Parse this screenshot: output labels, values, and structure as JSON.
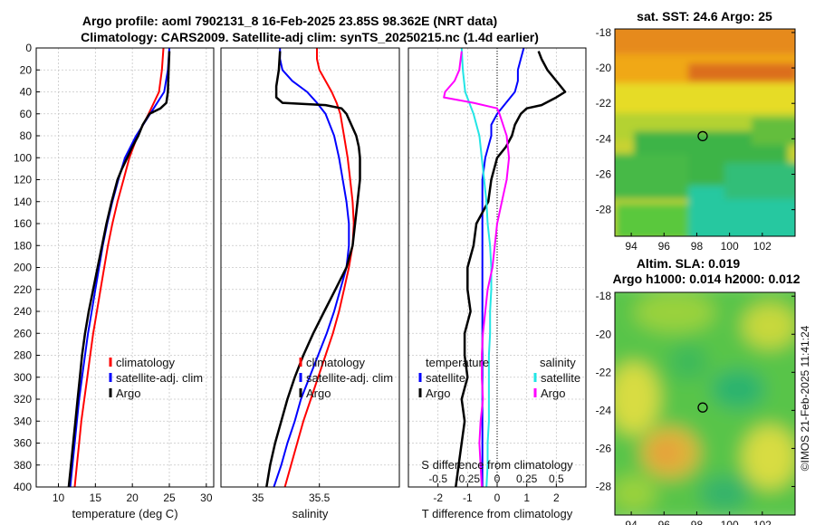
{
  "header": {
    "title_line1": "Argo profile: aoml 7902131_8 16-Feb-2025 23.85S 98.362E (NRT data)",
    "title_line2": "Climatology: CARS2009. Satellite-adj clim: synTS_20250215.nc (1.4d earlier)"
  },
  "side_text": "©IMOS 21-Feb-2025 11:41:24",
  "colors": {
    "climatology": "#ff0000",
    "satellite": "#0000ff",
    "argo": "#000000",
    "salinity_satellite": "#22e5e5",
    "salinity_argo": "#ff00ff"
  },
  "chart_data": [
    {
      "type": "line",
      "id": "temperature",
      "xlabel": "temperature (deg C)",
      "ylabel": "",
      "xlim": [
        7,
        31
      ],
      "ylim": [
        400,
        0
      ],
      "xticks": [
        10,
        15,
        20,
        25,
        30
      ],
      "yticks": [
        0,
        20,
        40,
        60,
        80,
        100,
        120,
        140,
        160,
        180,
        200,
        220,
        240,
        260,
        280,
        300,
        320,
        340,
        360,
        380,
        400
      ],
      "grid": true,
      "legend": {
        "position": "bottom-right",
        "entries": [
          "climatology",
          "satellite-adj. clim",
          "Argo"
        ]
      },
      "series": [
        {
          "name": "climatology",
          "depth": [
            0,
            20,
            40,
            60,
            80,
            100,
            120,
            140,
            160,
            180,
            200,
            220,
            240,
            260,
            280,
            300,
            320,
            340,
            360,
            380,
            400
          ],
          "values": [
            24.2,
            24.0,
            23.6,
            22.2,
            20.7,
            19.6,
            18.8,
            18.0,
            17.3,
            16.7,
            16.2,
            15.7,
            15.2,
            14.7,
            14.3,
            13.9,
            13.5,
            13.1,
            12.8,
            12.5,
            12.2
          ]
        },
        {
          "name": "satellite-adj. clim",
          "depth": [
            0,
            20,
            40,
            60,
            80,
            100,
            120,
            140,
            160,
            180,
            200,
            220,
            240,
            260,
            280,
            300,
            320,
            340,
            360,
            380,
            400
          ],
          "values": [
            25.0,
            24.8,
            24.3,
            22.4,
            20.5,
            19.0,
            18.1,
            17.3,
            16.6,
            16.0,
            15.5,
            15.0,
            14.5,
            14.0,
            13.6,
            13.2,
            12.8,
            12.5,
            12.2,
            11.9,
            11.6
          ]
        },
        {
          "name": "Argo",
          "depth": [
            3,
            20,
            40,
            50,
            55,
            60,
            70,
            80,
            90,
            100,
            110,
            120,
            140,
            160,
            180,
            200,
            220,
            240,
            260,
            280,
            300,
            320,
            340,
            360,
            380,
            400
          ],
          "values": [
            25.0,
            24.9,
            24.8,
            24.6,
            23.8,
            22.3,
            21.4,
            20.8,
            20.0,
            19.3,
            18.6,
            18.0,
            17.2,
            16.5,
            15.9,
            15.3,
            14.7,
            14.1,
            13.6,
            13.2,
            12.9,
            12.6,
            12.3,
            12.0,
            11.7,
            11.4
          ]
        }
      ]
    },
    {
      "type": "line",
      "id": "salinity",
      "xlabel": "salinity",
      "ylabel": "",
      "xlim": [
        34.7,
        36.15
      ],
      "ylim": [
        400,
        0
      ],
      "xticks": [
        35,
        35.5
      ],
      "grid": true,
      "legend": {
        "position": "bottom-right",
        "entries": [
          "climatology",
          "satellite-adj. clim",
          "Argo"
        ]
      },
      "series": [
        {
          "name": "climatology",
          "depth": [
            0,
            10,
            20,
            30,
            40,
            50,
            60,
            80,
            100,
            120,
            140,
            160,
            180,
            200,
            220,
            240,
            260,
            280,
            300,
            320,
            340,
            360,
            380,
            400
          ],
          "values": [
            35.48,
            35.48,
            35.5,
            35.55,
            35.6,
            35.64,
            35.67,
            35.7,
            35.73,
            35.75,
            35.77,
            35.78,
            35.77,
            35.74,
            35.7,
            35.66,
            35.61,
            35.55,
            35.49,
            35.43,
            35.37,
            35.32,
            35.27,
            35.22
          ]
        },
        {
          "name": "satellite-adj. clim",
          "depth": [
            0,
            10,
            20,
            30,
            40,
            50,
            60,
            80,
            100,
            120,
            140,
            160,
            180,
            200,
            220,
            240,
            260,
            280,
            300,
            320,
            340,
            360,
            380,
            400
          ],
          "values": [
            35.18,
            35.18,
            35.2,
            35.28,
            35.4,
            35.48,
            35.55,
            35.62,
            35.66,
            35.69,
            35.72,
            35.74,
            35.74,
            35.72,
            35.67,
            35.62,
            35.56,
            35.49,
            35.42,
            35.35,
            35.3,
            35.24,
            35.19,
            35.13
          ]
        },
        {
          "name": "Argo",
          "depth": [
            3,
            20,
            35,
            45,
            50,
            52,
            55,
            60,
            70,
            80,
            90,
            100,
            120,
            140,
            160,
            180,
            200,
            220,
            240,
            260,
            280,
            300,
            320,
            340,
            360,
            380,
            400
          ],
          "values": [
            35.18,
            35.17,
            35.15,
            35.15,
            35.2,
            35.55,
            35.68,
            35.72,
            35.76,
            35.8,
            35.82,
            35.83,
            35.83,
            35.81,
            35.79,
            35.77,
            35.72,
            35.63,
            35.54,
            35.45,
            35.37,
            35.3,
            35.24,
            35.19,
            35.14,
            35.1,
            35.07
          ]
        }
      ]
    },
    {
      "type": "line",
      "id": "difference",
      "xlabel": "T difference from climatology",
      "top_label": "S difference from climatology",
      "xlim": [
        -3,
        3
      ],
      "ylim": [
        400,
        0
      ],
      "xticks": [
        -2,
        -1,
        0,
        1,
        2
      ],
      "top_ticks": [
        "-0.5",
        "-0.25",
        "0",
        "0.25",
        "0.5"
      ],
      "grid": true,
      "legend": {
        "temperature_title": "temperature",
        "salinity_title": "salinity",
        "entries": [
          "satellite",
          "Argo",
          "satellite",
          "Argo"
        ]
      },
      "series": [
        {
          "name": "T satellite",
          "depth": [
            0,
            10,
            20,
            30,
            40,
            50,
            60,
            70,
            80,
            100,
            120,
            140,
            160,
            180,
            200,
            220,
            240,
            260,
            280,
            300,
            320,
            340,
            360,
            380,
            400
          ],
          "values": [
            0.9,
            0.8,
            0.7,
            0.7,
            0.6,
            0.3,
            0.0,
            -0.2,
            -0.2,
            -0.4,
            -0.5,
            -0.5,
            -0.5,
            -0.5,
            -0.5,
            -0.5,
            -0.5,
            -0.5,
            -0.5,
            -0.5,
            -0.5,
            -0.5,
            -0.5,
            -0.5,
            -0.5
          ]
        },
        {
          "name": "T Argo",
          "depth": [
            3,
            10,
            20,
            30,
            40,
            45,
            52,
            55,
            60,
            70,
            80,
            90,
            100,
            120,
            140,
            160,
            180,
            200,
            220,
            240,
            260,
            280,
            300,
            320,
            340,
            360,
            380,
            400
          ],
          "values": [
            1.4,
            1.5,
            1.7,
            2.0,
            2.3,
            2.0,
            1.5,
            1.0,
            0.8,
            0.6,
            0.5,
            0.3,
            0.0,
            -0.2,
            -0.3,
            -0.7,
            -0.8,
            -1.0,
            -1.0,
            -0.9,
            -1.1,
            -1.1,
            -1.0,
            -1.2,
            -1.1,
            -1.2,
            -1.3,
            -1.4
          ]
        },
        {
          "name": "S satellite",
          "depth": [
            0,
            20,
            40,
            60,
            80,
            100,
            120,
            140,
            160,
            180,
            200,
            220,
            240,
            260,
            280,
            300,
            320,
            340,
            360,
            380,
            400
          ],
          "values": [
            -0.3,
            -0.29,
            -0.27,
            -0.2,
            -0.15,
            -0.13,
            -0.11,
            -0.09,
            -0.08,
            -0.06,
            -0.05,
            -0.05,
            -0.06,
            -0.06,
            -0.07,
            -0.07,
            -0.07,
            -0.07,
            -0.08,
            -0.08,
            -0.09
          ]
        },
        {
          "name": "S Argo",
          "depth": [
            3,
            20,
            30,
            40,
            45,
            50,
            55,
            60,
            80,
            100,
            120,
            140,
            160,
            180,
            200,
            220,
            240,
            260,
            280,
            300,
            320,
            340,
            360,
            380,
            400
          ],
          "values": [
            -0.3,
            -0.32,
            -0.36,
            -0.44,
            -0.45,
            -0.2,
            0.0,
            0.02,
            0.08,
            0.1,
            0.08,
            0.04,
            0.0,
            -0.02,
            -0.04,
            -0.08,
            -0.1,
            -0.12,
            -0.13,
            -0.13,
            -0.12,
            -0.14,
            -0.15,
            -0.14,
            -0.13
          ]
        }
      ]
    },
    {
      "type": "heatmap",
      "id": "sst_map",
      "title": "sat. SST: 24.6 Argo: 25",
      "xlim": [
        93,
        104
      ],
      "ylim": [
        -29.5,
        -17.8
      ],
      "xticks": [
        94,
        96,
        98,
        100,
        102
      ],
      "yticks": [
        -18,
        -20,
        -22,
        -24,
        -26,
        -28
      ],
      "marker": {
        "lon": 98.36,
        "lat": -23.85
      }
    },
    {
      "type": "heatmap",
      "id": "sla_map",
      "title_line1": "Altim. SLA: 0.019",
      "title_line2": "Argo h1000: 0.014 h2000: 0.012",
      "xlim": [
        93,
        104
      ],
      "ylim": [
        -29.5,
        -17.8
      ],
      "xticks": [
        94,
        96,
        98,
        100,
        102
      ],
      "yticks": [
        -18,
        -20,
        -22,
        -24,
        -26,
        -28
      ],
      "marker": {
        "lon": 98.36,
        "lat": -23.85
      }
    }
  ]
}
